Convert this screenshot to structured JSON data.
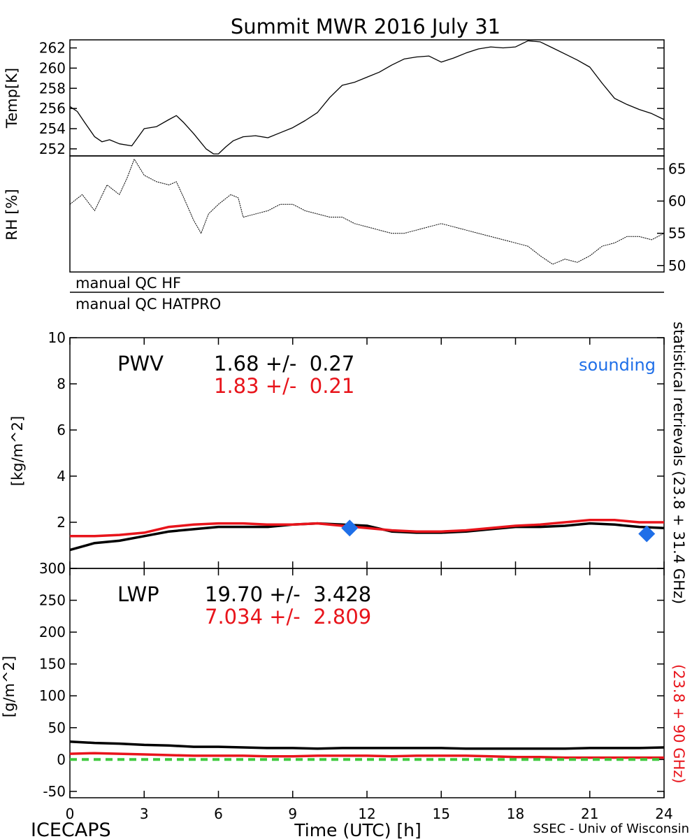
{
  "title": "Summit MWR 2016 July 31",
  "footer": {
    "left": "ICECAPS",
    "center": "Time (UTC) [h]",
    "right": "SSEC - Univ of Wisconsin"
  },
  "colors": {
    "black": "#000000",
    "red": "#e8141b",
    "blue": "#1f6fe8",
    "green": "#3ec93e"
  },
  "qc_labels": [
    "manual QC HF",
    "manual QC HATPRO"
  ],
  "right_labels": {
    "black": "statistical retrievals (23.8 + 31.4 GHz)",
    "red": "(23.8 + 90 GHz)"
  },
  "chart_data": [
    {
      "type": "line",
      "ylabel": "Temp[K]",
      "xlim": [
        0,
        24
      ],
      "ylim": [
        251.3,
        262.8
      ],
      "yticks": [
        252,
        254,
        256,
        258,
        260,
        262
      ],
      "series": [
        {
          "color": "#000000",
          "x": [
            0,
            0.3,
            0.6,
            1,
            1.3,
            1.6,
            2,
            2.5,
            3,
            3.5,
            4,
            4.3,
            4.6,
            5,
            5.5,
            5.8,
            6,
            6.3,
            6.6,
            7,
            7.5,
            8,
            8.5,
            9,
            9.5,
            10,
            10.5,
            11,
            11.5,
            12,
            12.5,
            13,
            13.5,
            14,
            14.5,
            15,
            15.5,
            16,
            16.5,
            17,
            17.5,
            18,
            18.5,
            19,
            19.5,
            20,
            20.5,
            21,
            21.5,
            22,
            22.5,
            23,
            23.5,
            24
          ],
          "y": [
            256.2,
            255.7,
            254.6,
            253.2,
            252.7,
            252.9,
            252.5,
            252.3,
            254.0,
            254.2,
            254.9,
            255.3,
            254.6,
            253.5,
            252.0,
            251.5,
            251.5,
            252.2,
            252.8,
            253.2,
            253.3,
            253.1,
            253.6,
            254.1,
            254.8,
            255.6,
            257.1,
            258.3,
            258.6,
            259.1,
            259.6,
            260.3,
            260.9,
            261.1,
            261.2,
            260.6,
            261.0,
            261.5,
            261.9,
            262.1,
            262.0,
            262.1,
            262.7,
            262.6,
            262.0,
            261.4,
            260.8,
            260.1,
            258.5,
            257.0,
            256.4,
            255.9,
            255.5,
            254.9
          ]
        }
      ]
    },
    {
      "type": "line",
      "ylabel": "RH [%]",
      "xlim": [
        0,
        24
      ],
      "ylim": [
        49,
        67
      ],
      "yticks": [
        50,
        55,
        60,
        65
      ],
      "series": [
        {
          "color": "#000000",
          "x": [
            0,
            0.5,
            1,
            1.5,
            2,
            2.3,
            2.6,
            3,
            3.5,
            4,
            4.3,
            4.6,
            5,
            5.3,
            5.6,
            6,
            6.5,
            6.8,
            7,
            7.5,
            8,
            8.5,
            9,
            9.5,
            10,
            10.5,
            11,
            11.5,
            12,
            12.5,
            13,
            13.5,
            14,
            14.5,
            15,
            15.5,
            16,
            16.5,
            17,
            17.5,
            18,
            18.5,
            19,
            19.5,
            20,
            20.5,
            21,
            21.5,
            22,
            22.5,
            23,
            23.5,
            24
          ],
          "y": [
            59.5,
            61.0,
            58.5,
            62.5,
            61.0,
            63.5,
            66.5,
            64.0,
            63.0,
            62.5,
            63.0,
            60.5,
            57.0,
            55.0,
            58.0,
            59.5,
            61.0,
            60.5,
            57.5,
            58.0,
            58.5,
            59.5,
            59.5,
            58.5,
            58.0,
            57.5,
            57.5,
            56.5,
            56.0,
            55.5,
            55.0,
            55.0,
            55.5,
            56.0,
            56.5,
            56.0,
            55.5,
            55.0,
            54.5,
            54.0,
            53.5,
            53.0,
            51.5,
            50.2,
            51.0,
            50.5,
            51.5,
            53.0,
            53.5,
            54.5,
            54.5,
            54.0,
            55.0
          ]
        }
      ]
    },
    {
      "type": "line",
      "ylabel": "[kg/m^2]",
      "xlim": [
        0,
        24
      ],
      "ylim": [
        0,
        10
      ],
      "yticks": [
        0,
        2,
        4,
        6,
        8,
        10
      ],
      "xticks": [
        0,
        3,
        6,
        9,
        12,
        15,
        18,
        21,
        24
      ],
      "annotations": {
        "name": "PWV",
        "black_stat": "1.68 +/-  0.27",
        "red_stat": "1.83 +/-  0.21",
        "legend": "sounding"
      },
      "series": [
        {
          "color": "#000000",
          "x": [
            0,
            1,
            2,
            3,
            4,
            5,
            6,
            7,
            8,
            9,
            10,
            11,
            12,
            13,
            14,
            15,
            16,
            17,
            18,
            19,
            20,
            21,
            22,
            23,
            24
          ],
          "y": [
            0.8,
            1.1,
            1.2,
            1.4,
            1.6,
            1.7,
            1.8,
            1.8,
            1.8,
            1.9,
            1.95,
            1.9,
            1.85,
            1.6,
            1.55,
            1.55,
            1.6,
            1.7,
            1.8,
            1.8,
            1.85,
            1.95,
            1.9,
            1.8,
            1.75
          ]
        },
        {
          "color": "#e8141b",
          "x": [
            0,
            1,
            2,
            3,
            4,
            5,
            6,
            7,
            8,
            9,
            10,
            11,
            12,
            13,
            14,
            15,
            16,
            17,
            18,
            19,
            20,
            21,
            22,
            23,
            24
          ],
          "y": [
            1.4,
            1.4,
            1.45,
            1.55,
            1.8,
            1.9,
            1.95,
            1.95,
            1.9,
            1.9,
            1.95,
            1.85,
            1.75,
            1.65,
            1.6,
            1.6,
            1.65,
            1.75,
            1.85,
            1.9,
            2.0,
            2.1,
            2.1,
            2.0,
            2.0
          ]
        },
        {
          "color": "#1f6fe8",
          "marker": "diamond",
          "x": [
            11.3,
            23.3
          ],
          "y": [
            1.75,
            1.5
          ]
        }
      ]
    },
    {
      "type": "line",
      "ylabel": "[g/m^2]",
      "xlabel": "Time (UTC) [h]",
      "xlim": [
        0,
        24
      ],
      "ylim": [
        -60,
        300
      ],
      "yticks": [
        -50,
        0,
        50,
        100,
        150,
        200,
        250,
        300
      ],
      "xticks": [
        0,
        3,
        6,
        9,
        12,
        15,
        18,
        21,
        24
      ],
      "annotations": {
        "name": "LWP",
        "black_stat": "19.70 +/-  3.428",
        "red_stat": "7.034 +/-  2.809"
      },
      "series": [
        {
          "color": "#000000",
          "x": [
            0,
            1,
            2,
            3,
            4,
            5,
            6,
            7,
            8,
            9,
            10,
            11,
            12,
            13,
            14,
            15,
            16,
            17,
            18,
            19,
            20,
            21,
            22,
            23,
            24
          ],
          "y": [
            28,
            26,
            25,
            23,
            22,
            20,
            20,
            19,
            18,
            18,
            17,
            18,
            18,
            18,
            18,
            18,
            17,
            17,
            17,
            17,
            17,
            18,
            18,
            18,
            19
          ]
        },
        {
          "color": "#e8141b",
          "x": [
            0,
            1,
            2,
            3,
            4,
            5,
            6,
            7,
            8,
            9,
            10,
            11,
            12,
            13,
            14,
            15,
            16,
            17,
            18,
            19,
            20,
            21,
            22,
            23,
            24
          ],
          "y": [
            9,
            10,
            9,
            8,
            7,
            6,
            6,
            6,
            5,
            5,
            6,
            6,
            6,
            5,
            6,
            6,
            6,
            5,
            4,
            4,
            3,
            3,
            3,
            3,
            3
          ]
        },
        {
          "color": "#3ec93e",
          "style": "dashed",
          "x": [
            0,
            24
          ],
          "y": [
            0,
            0
          ]
        }
      ]
    }
  ]
}
